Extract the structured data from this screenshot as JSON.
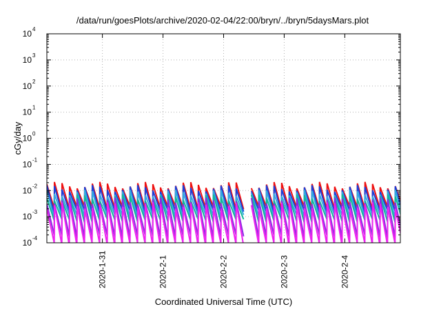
{
  "chart_data": {
    "type": "line",
    "title": "/data/run/goesPlots/archive/2020-02-04/22:00/bryn/../bryn/5daysMars.plot",
    "xlabel": "Coordinated Universal Time (UTC)",
    "ylabel": "cGy/day",
    "yscale": "log",
    "ylim": [
      0.0001,
      10000
    ],
    "yticks": [
      {
        "base": "10",
        "exp": "-4",
        "value": 0.0001
      },
      {
        "base": "10",
        "exp": "-3",
        "value": 0.001
      },
      {
        "base": "10",
        "exp": "-2",
        "value": 0.01
      },
      {
        "base": "10",
        "exp": "-1",
        "value": 0.1
      },
      {
        "base": "10",
        "exp": "0",
        "value": 1
      },
      {
        "base": "10",
        "exp": "1",
        "value": 10
      },
      {
        "base": "10",
        "exp": "2",
        "value": 100
      },
      {
        "base": "10",
        "exp": "3",
        "value": 1000
      },
      {
        "base": "10",
        "exp": "4",
        "value": 10000
      }
    ],
    "xlim": [
      "2020-01-30T02:00",
      "2020-02-04T22:00"
    ],
    "xticks": [
      {
        "label": "2020-1-31",
        "value": "2020-01-31"
      },
      {
        "label": "2020-2-1",
        "value": "2020-02-01"
      },
      {
        "label": "2020-2-2",
        "value": "2020-02-02"
      },
      {
        "label": "2020-2-3",
        "value": "2020-02-03"
      },
      {
        "label": "2020-2-4",
        "value": "2020-02-04"
      }
    ],
    "grid": true,
    "series": [
      {
        "color": "#ee1111",
        "peak": 0.012,
        "trough": 0.0025
      },
      {
        "color": "#1a3fd8",
        "peak": 0.009,
        "trough": 0.0018
      },
      {
        "color": "#33a8e0",
        "peak": 0.006,
        "trough": 0.0012
      },
      {
        "color": "#11b89a",
        "peak": 0.004,
        "trough": 0.0008
      },
      {
        "color": "#8a2be2",
        "peak": 0.003,
        "trough": 0.0002
      },
      {
        "color": "#ee22ee",
        "peak": 0.002,
        "trough": 0.0001
      }
    ],
    "data_gap": [
      "2020-02-02T06:00",
      "2020-02-02T09:30"
    ],
    "sawtooth_period_hours": 3.0
  }
}
